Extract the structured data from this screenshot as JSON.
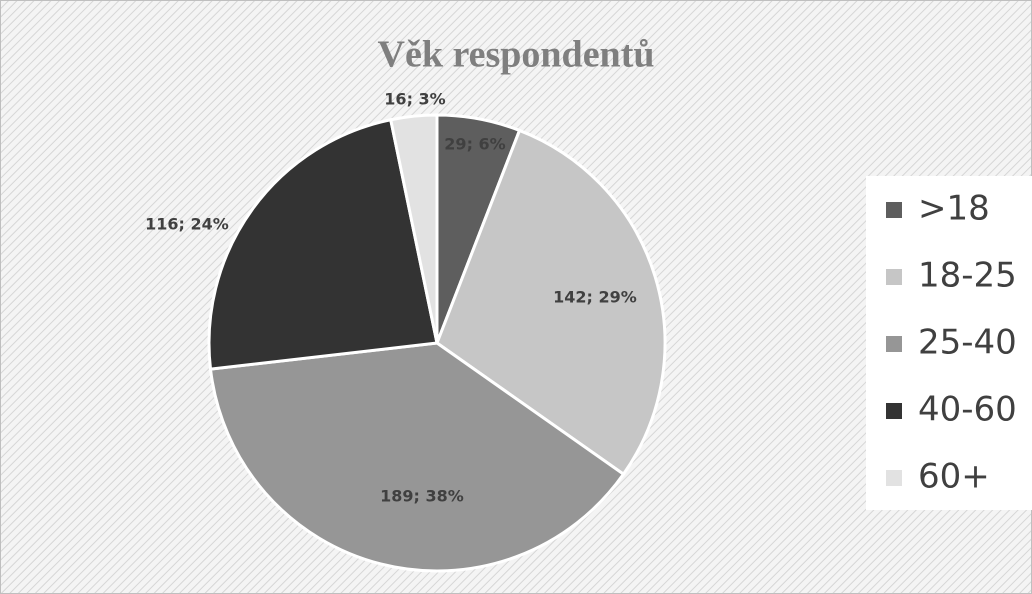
{
  "chart_data": {
    "type": "pie",
    "title": "Věk respondentů",
    "categories": [
      ">18",
      "18-25",
      "25-40",
      "40-60",
      "60+"
    ],
    "values": [
      29,
      142,
      189,
      116,
      16
    ],
    "value_labels": [
      "29; 6%",
      "142; 29%",
      "189; 38%",
      "116; 24%",
      "16; 3%"
    ],
    "colors": [
      "#5e5e5e",
      "#c6c6c6",
      "#969696",
      "#333333",
      "#e2e2e2"
    ],
    "legend": "right"
  }
}
